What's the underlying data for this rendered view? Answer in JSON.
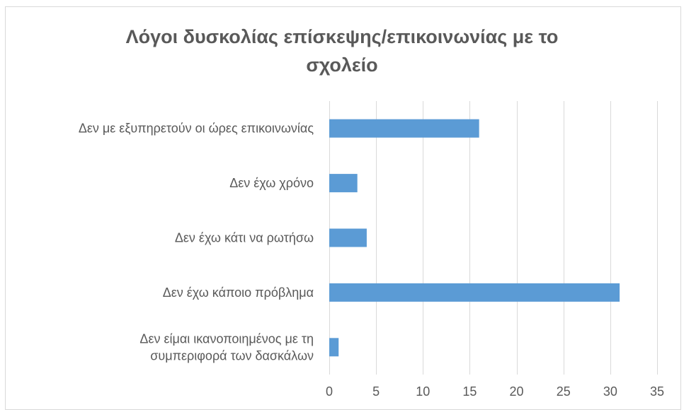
{
  "chart_data": {
    "type": "bar",
    "orientation": "horizontal",
    "title": [
      "Λόγοι δυσκολίας επίσκεψης/επικοινωνίας με το",
      "σχολείο"
    ],
    "categories": [
      [
        "Δεν με εξυπηρετούν  οι ώρες επικοινωνίας"
      ],
      [
        "Δεν έχω χρόνο"
      ],
      [
        "Δεν έχω κάτι να ρωτήσω"
      ],
      [
        "Δεν έχω κάποιο πρόβλημα"
      ],
      [
        "Δεν είμαι ικανοποιημένος με τη",
        "συμπεριφορά των δασκάλων"
      ]
    ],
    "values": [
      16,
      3,
      4,
      31,
      1
    ],
    "xlim": [
      0,
      35
    ],
    "xticks": [
      0,
      5,
      10,
      15,
      20,
      25,
      30,
      35
    ],
    "grid": true,
    "legend": "none",
    "bar_color": "#5b9bd5",
    "grid_color": "#d9d9d9",
    "text_color": "#595959"
  }
}
